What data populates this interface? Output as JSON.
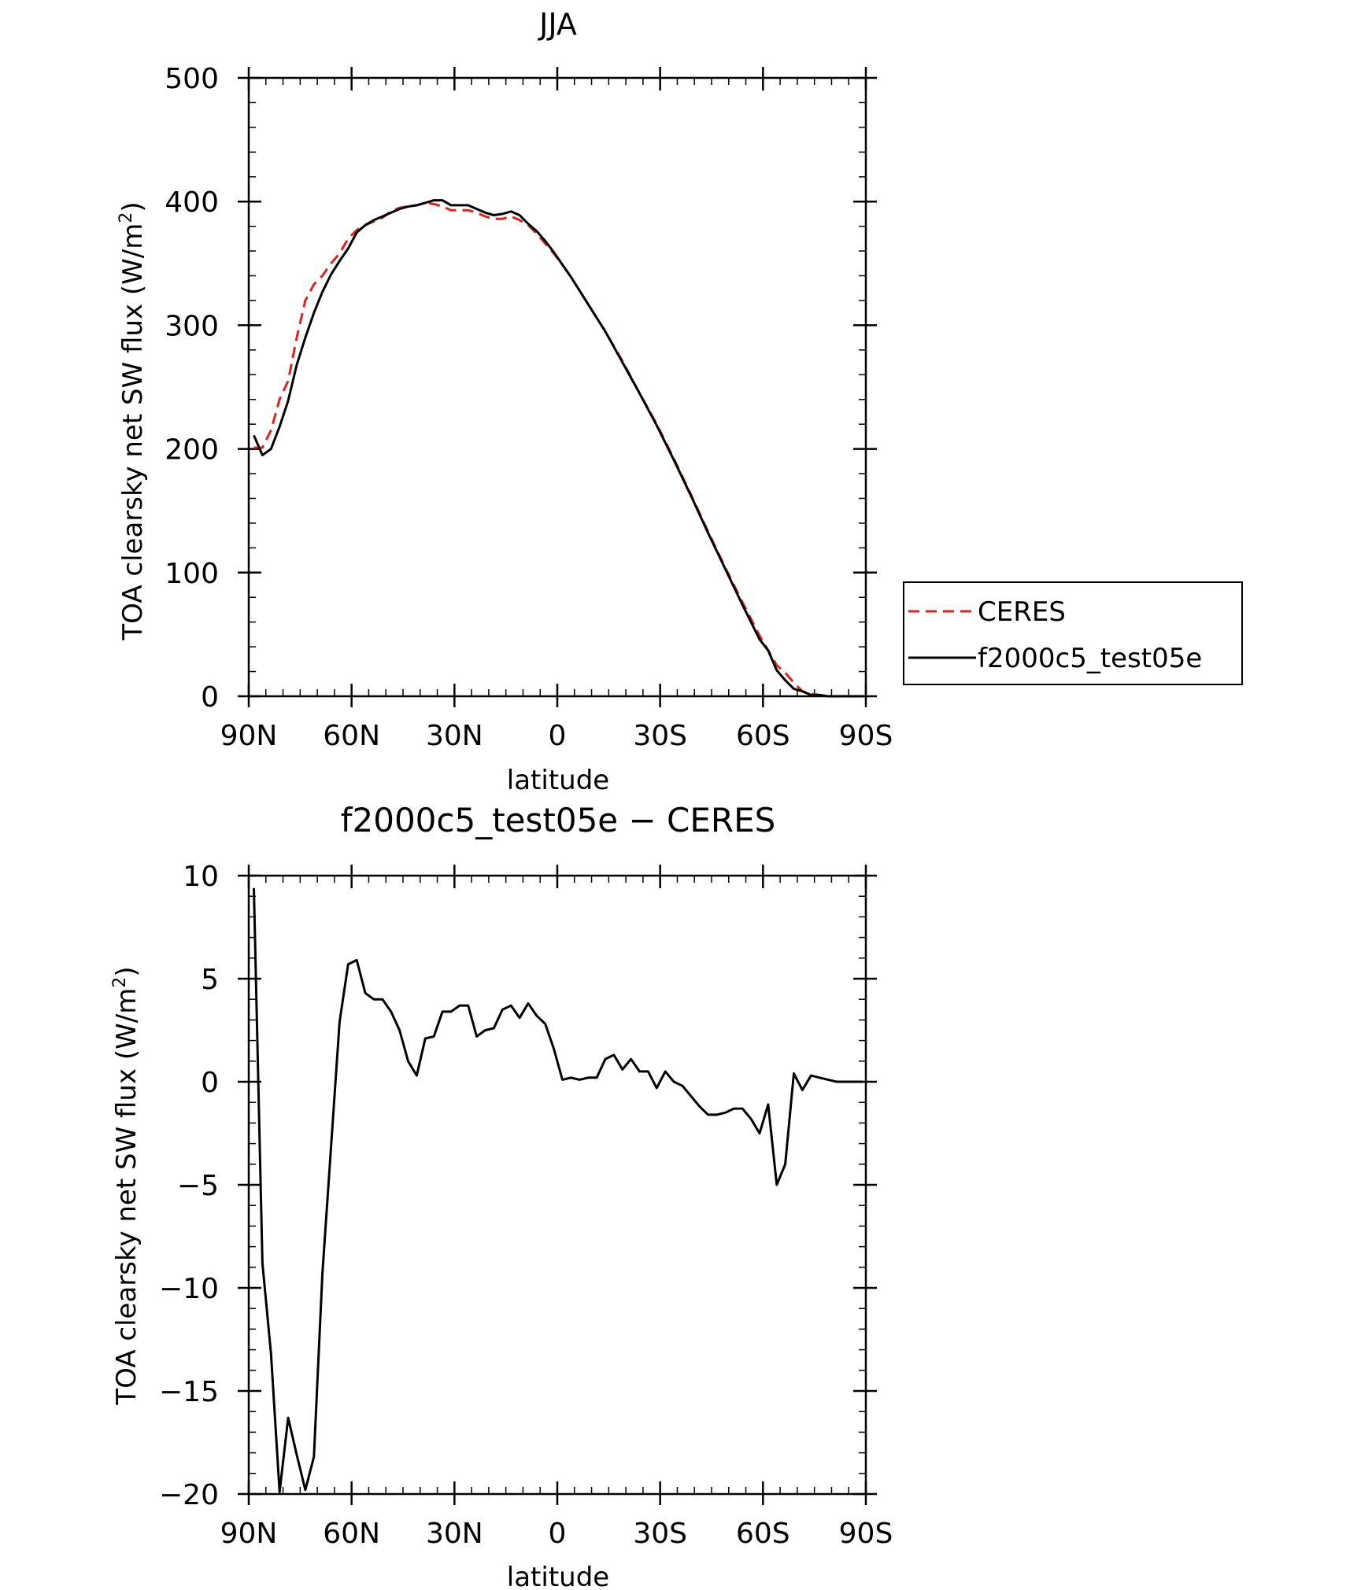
{
  "chart_data": [
    {
      "type": "line",
      "title": "JJA",
      "xlabel": "latitude",
      "ylabel_main": "TOA clearsky net SW flux (W/m",
      "ylabel_sup": "2",
      "ylabel_close": ")",
      "xlim": [
        -90,
        90
      ],
      "ylim": [
        0,
        500
      ],
      "x_direction": "north-to-south",
      "x_ticks": [
        {
          "v": -90,
          "label": "90N"
        },
        {
          "v": -60,
          "label": "60N"
        },
        {
          "v": -30,
          "label": "30N"
        },
        {
          "v": 0,
          "label": "0"
        },
        {
          "v": 30,
          "label": "30S"
        },
        {
          "v": 60,
          "label": "60S"
        },
        {
          "v": 90,
          "label": "90S"
        }
      ],
      "y_ticks": [
        {
          "v": 0,
          "label": "0"
        },
        {
          "v": 100,
          "label": "100"
        },
        {
          "v": 200,
          "label": "200"
        },
        {
          "v": 300,
          "label": "300"
        },
        {
          "v": 400,
          "label": "400"
        },
        {
          "v": 500,
          "label": "500"
        }
      ],
      "legend_position": "right",
      "series": [
        {
          "name": "CERES",
          "color": "#e0201c",
          "dash": "dashed",
          "x": [
            -88.5,
            -86,
            -83.5,
            -81,
            -78.5,
            -76,
            -73.5,
            -71,
            -68.5,
            -66,
            -63.5,
            -61,
            -58.5,
            -56,
            -53.5,
            -51,
            -48.5,
            -46,
            -43.5,
            -41,
            -38.5,
            -36,
            -33.5,
            -31,
            -28.5,
            -26,
            -23.5,
            -21,
            -18.5,
            -16,
            -13.5,
            -11,
            -8.5,
            -6,
            -3.5,
            -1,
            1.5,
            4,
            9,
            14,
            19,
            24,
            29,
            34,
            39,
            44,
            49,
            54,
            59,
            61.5,
            64,
            66.5,
            69,
            71.5,
            74,
            76.5,
            79,
            84,
            89
          ],
          "y": [
            201,
            201,
            215,
            240,
            255,
            290,
            320,
            333,
            340,
            350,
            358,
            370,
            377,
            381,
            384,
            387,
            392,
            395,
            396,
            397,
            399,
            398,
            396,
            393,
            393,
            393,
            391,
            388,
            386,
            386,
            388,
            385,
            381,
            374,
            366,
            358,
            349,
            339,
            317,
            295,
            271,
            245,
            220,
            192,
            163,
            133,
            104,
            76,
            49,
            37,
            25,
            19,
            11,
            4,
            2,
            1,
            0,
            0,
            0
          ]
        },
        {
          "name": "f2000c5_test05e",
          "color": "#000000",
          "dash": "solid",
          "x": [
            -88.5,
            -86,
            -83.5,
            -81,
            -78.5,
            -76,
            -73.5,
            -71,
            -68.5,
            -66,
            -63.5,
            -61,
            -58.5,
            -56,
            -53.5,
            -51,
            -48.5,
            -46,
            -43.5,
            -41,
            -38.5,
            -36,
            -33.5,
            -31,
            -28.5,
            -26,
            -23.5,
            -21,
            -18.5,
            -16,
            -13.5,
            -11,
            -8.5,
            -6,
            -3.5,
            -1,
            1.5,
            4,
            9,
            14,
            19,
            24,
            29,
            34,
            39,
            44,
            49,
            54,
            59,
            61.5,
            64,
            66.5,
            69,
            71.5,
            74,
            76.5,
            79,
            84,
            89
          ],
          "y": [
            211,
            195,
            200,
            218,
            239,
            268,
            290,
            310,
            327,
            341,
            352,
            362,
            375,
            381,
            385,
            388,
            391,
            394,
            396,
            397,
            399,
            401,
            401,
            397,
            397,
            397,
            394,
            391,
            389,
            390,
            392,
            389,
            382,
            376,
            368,
            359,
            349,
            339,
            317,
            295,
            270,
            245,
            219,
            191,
            162,
            132,
            103,
            74,
            46,
            37,
            21,
            13,
            6,
            4,
            1,
            1,
            0,
            0,
            0
          ]
        }
      ]
    },
    {
      "type": "line",
      "title": "f2000c5_test05e − CERES",
      "xlabel": "latitude",
      "ylabel_main": "TOA clearsky net SW flux (W/m",
      "ylabel_sup": "2",
      "ylabel_close": ")",
      "xlim": [
        -90,
        90
      ],
      "ylim": [
        -20,
        10
      ],
      "x_direction": "north-to-south",
      "x_ticks": [
        {
          "v": -90,
          "label": "90N"
        },
        {
          "v": -60,
          "label": "60N"
        },
        {
          "v": -30,
          "label": "30N"
        },
        {
          "v": 0,
          "label": "0"
        },
        {
          "v": 30,
          "label": "30S"
        },
        {
          "v": 60,
          "label": "60S"
        },
        {
          "v": 90,
          "label": "90S"
        }
      ],
      "y_ticks": [
        {
          "v": -20,
          "label": "−20"
        },
        {
          "v": -15,
          "label": "−15"
        },
        {
          "v": -10,
          "label": "−10"
        },
        {
          "v": -5,
          "label": "−5"
        },
        {
          "v": 0,
          "label": "0"
        },
        {
          "v": 5,
          "label": "5"
        },
        {
          "v": 10,
          "label": "10"
        }
      ],
      "series": [
        {
          "name": "f2000c5_test05e − CERES",
          "color": "#000000",
          "dash": "solid",
          "x": [
            -88.5,
            -86,
            -83.5,
            -81,
            -78.5,
            -76,
            -73.5,
            -71,
            -68.5,
            -66,
            -63.5,
            -61,
            -58.5,
            -56,
            -53.5,
            -51,
            -48.5,
            -46,
            -43.5,
            -41,
            -38.5,
            -36,
            -33.5,
            -31,
            -28.5,
            -26,
            -23.5,
            -21,
            -18.5,
            -16,
            -13.5,
            -11,
            -8.5,
            -6,
            -3.5,
            -1,
            1.5,
            4,
            6.5,
            9,
            11.5,
            14,
            16.5,
            19,
            21.5,
            24,
            26.5,
            29,
            31.5,
            34,
            36.5,
            39,
            41.5,
            44,
            46.5,
            49,
            51.5,
            54,
            56.5,
            59,
            61.5,
            64,
            66.5,
            69,
            71.5,
            74,
            76.5,
            79,
            81.5,
            84,
            86.5,
            89
          ],
          "y": [
            9.4,
            -8.8,
            -13.2,
            -19.9,
            -16.3,
            -18.1,
            -19.8,
            -18.2,
            -9.3,
            -3.2,
            2.9,
            5.7,
            5.9,
            4.3,
            4.0,
            4.0,
            3.4,
            2.5,
            1.0,
            0.3,
            2.1,
            2.2,
            3.4,
            3.4,
            3.7,
            3.7,
            2.2,
            2.5,
            2.6,
            3.5,
            3.7,
            3.1,
            3.8,
            3.2,
            2.8,
            1.6,
            0.1,
            0.2,
            0.1,
            0.2,
            0.2,
            1.1,
            1.3,
            0.6,
            1.1,
            0.5,
            0.5,
            -0.3,
            0.5,
            0.0,
            -0.2,
            -0.7,
            -1.2,
            -1.6,
            -1.6,
            -1.5,
            -1.3,
            -1.3,
            -1.8,
            -2.5,
            -1.1,
            -5.0,
            -4.0,
            0.4,
            -0.4,
            0.3,
            0.2,
            0.1,
            0.0,
            0.0,
            0.0,
            0.0
          ]
        }
      ]
    }
  ]
}
